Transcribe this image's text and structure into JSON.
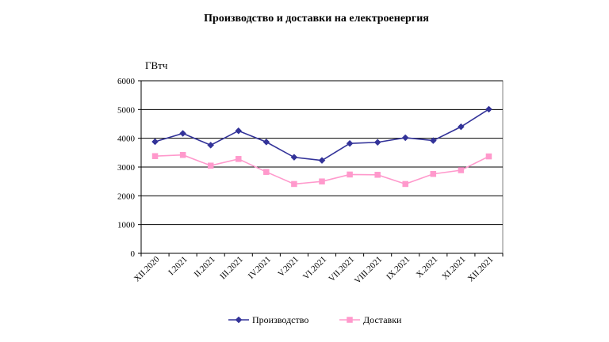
{
  "chart_data": {
    "type": "line",
    "title": "Производство и доставки на електроенергия",
    "ylabel": "ГВтч",
    "ylim": [
      0,
      6000
    ],
    "yticks": [
      0,
      1000,
      2000,
      3000,
      4000,
      5000,
      6000
    ],
    "categories": [
      "XII.2020",
      "I.2021",
      "II.2021",
      "III.2021",
      "IV.2021",
      "V.2021",
      "VI.2021",
      "VII.2021",
      "VIII.2021",
      "IX.2021",
      "X.2021",
      "XI.2021",
      "XII.2021"
    ],
    "grid": true,
    "legend_position": "bottom",
    "series": [
      {
        "name": "Производство",
        "color": "#333399",
        "marker": "diamond",
        "values": [
          3880,
          4170,
          3760,
          4260,
          3870,
          3340,
          3230,
          3820,
          3860,
          4020,
          3920,
          4400,
          5010
        ]
      },
      {
        "name": "Доставки",
        "color": "#ff99cc",
        "marker": "square",
        "values": [
          3380,
          3420,
          3050,
          3280,
          2830,
          2410,
          2500,
          2740,
          2730,
          2410,
          2760,
          2890,
          3370
        ]
      }
    ]
  }
}
